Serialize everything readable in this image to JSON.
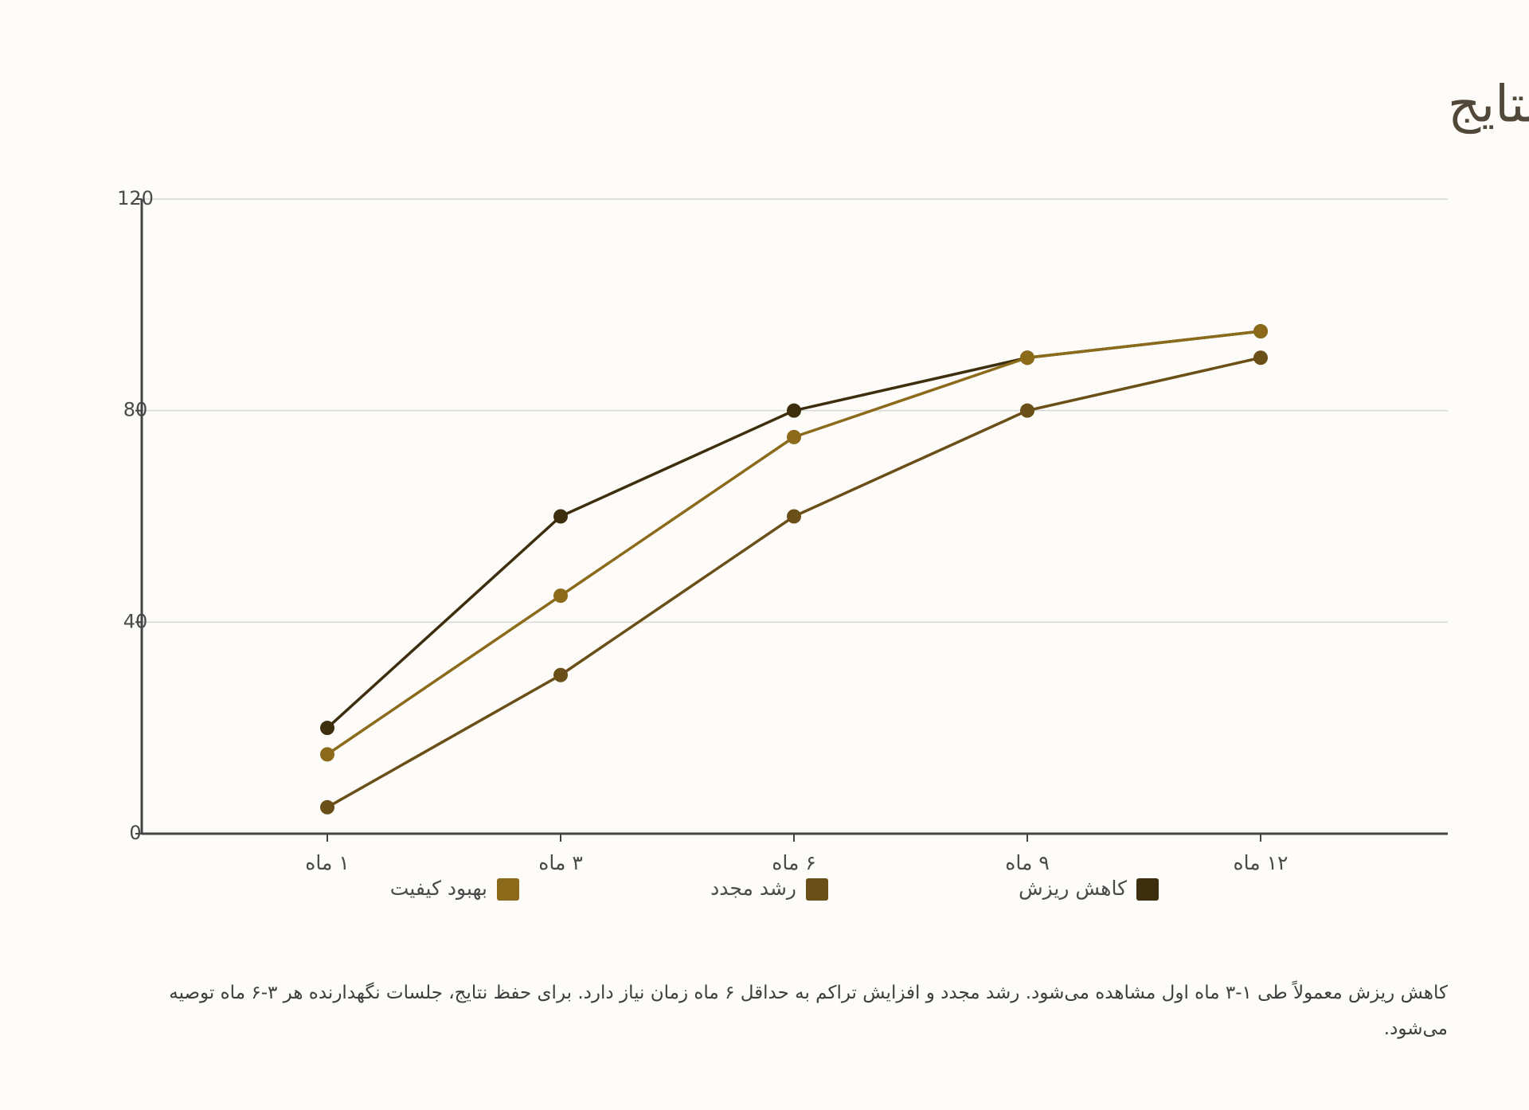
{
  "chart_data": {
    "type": "line",
    "title": "زمان‌بندی و ماندگاری نتایج",
    "categories": [
      "۱ ماه",
      "۳ ماه",
      "۶ ماه",
      "۹ ماه",
      "۱۲ ماه"
    ],
    "series": [
      {
        "name": "کاهش ریزش",
        "color": "#3d2e0e",
        "values": [
          20,
          60,
          80,
          90,
          95
        ]
      },
      {
        "name": "رشد مجدد",
        "color": "#6b4f18",
        "values": [
          5,
          30,
          60,
          80,
          90
        ]
      },
      {
        "name": "بهبود کیفیت",
        "color": "#8c6a1c",
        "values": [
          15,
          45,
          75,
          90,
          95
        ]
      }
    ],
    "ylim": [
      0,
      120
    ],
    "yticks": [
      0,
      40,
      80,
      120
    ],
    "grid": true,
    "legend": "bottom",
    "note": "کاهش ریزش معمولاً طی ۱-۳ ماه اول مشاهده می‌شود. رشد مجدد و افزایش تراکم به حداقل ۶ ماه زمان نیاز دارد. برای حفظ نتایج، جلسات نگهدارنده هر ۳-۶ ماه توصیه می‌شود."
  }
}
